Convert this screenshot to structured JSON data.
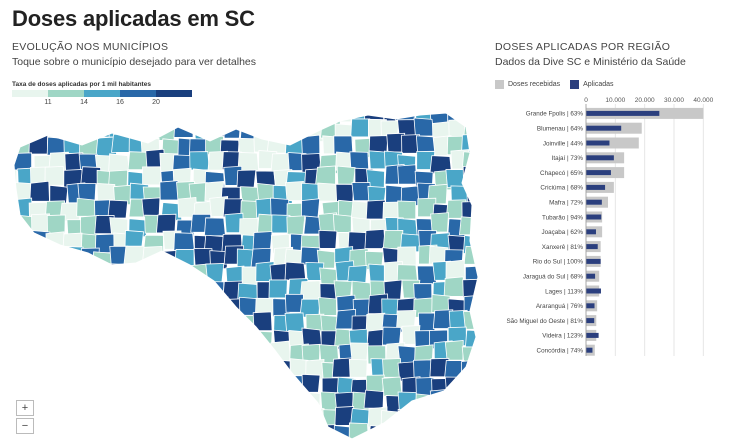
{
  "title": "Doses aplicadas em SC",
  "map": {
    "subtitle1": "EVOLUÇÃO NOS MUNICÍPIOS",
    "subtitle2": "Toque sobre o município desejado para ver detalhes",
    "legend_title": "Taxa de doses aplicadas por 1 mil habitantes",
    "legend_ticks": [
      "11",
      "14",
      "16",
      "20"
    ],
    "legend_colors": [
      "#e8f5ee",
      "#9fd6c5",
      "#4aa6c8",
      "#2968a8",
      "#1a3f7e"
    ],
    "zoom_in": "+",
    "zoom_out": "−"
  },
  "chart": {
    "subtitle1": "DOSES APLICADAS POR REGIÃO",
    "subtitle2": "Dados da Dive SC e Ministério da Saúde",
    "legend_received": "Doses recebidas",
    "legend_applied": "Aplicadas",
    "colors": {
      "received": "#c8c8c8",
      "applied": "#2b3f7e"
    }
  },
  "chart_data": {
    "type": "bar",
    "orientation": "horizontal",
    "x_ticks": [
      "0",
      "10.000",
      "20.000",
      "30.000",
      "40.000"
    ],
    "xlim": [
      0,
      45000
    ],
    "grid": true,
    "legend_position": "top-left",
    "categories": [
      "Grande Fpolis | 63%",
      "Blumenau | 64%",
      "Joinville | 44%",
      "Itajaí | 73%",
      "Chapecó | 65%",
      "Criciúma | 68%",
      "Mafra | 72%",
      "Tubarão | 94%",
      "Joaçaba | 62%",
      "Xanxerê | 81%",
      "Rio do Sul | 100%",
      "Jaraguá do Sul | 68%",
      "Lages | 113%",
      "Araranguá | 76%",
      "São Miguel do Oeste | 81%",
      "Videira | 123%",
      "Concórdia | 74%"
    ],
    "series": [
      {
        "name": "Doses recebidas",
        "values": [
          40000,
          19000,
          18000,
          13000,
          13000,
          9500,
          7500,
          5500,
          5500,
          5000,
          5000,
          4500,
          4500,
          3800,
          3500,
          3500,
          3000
        ]
      },
      {
        "name": "Aplicadas",
        "values": [
          25000,
          12000,
          8000,
          9500,
          8500,
          6500,
          5400,
          5200,
          3400,
          4000,
          5000,
          3100,
          5100,
          2900,
          2800,
          4300,
          2200
        ]
      }
    ]
  }
}
